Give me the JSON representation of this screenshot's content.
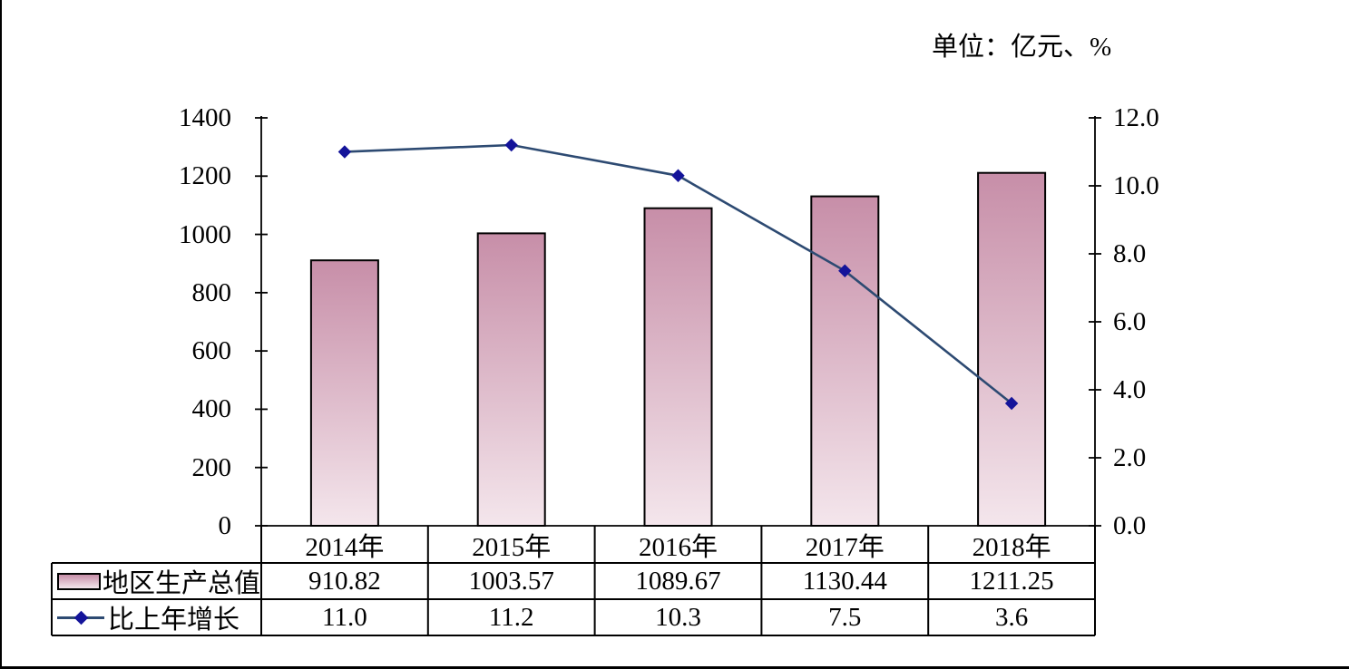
{
  "unit_label": "单位：亿元、%",
  "legend": [
    {
      "label": "地区生产总值",
      "icon": "bar-swatch-icon"
    },
    {
      "label": "比上年增长",
      "icon": "line-marker-icon"
    }
  ],
  "chart_data": {
    "type": "bar+line",
    "title": "",
    "unit_note": "单位：亿元、%",
    "categories": [
      "2014年",
      "2015年",
      "2016年",
      "2017年",
      "2018年"
    ],
    "series": [
      {
        "name": "地区生产总值",
        "type": "bar",
        "axis": "left",
        "values": [
          910.82,
          1003.57,
          1089.67,
          1130.44,
          1211.25
        ]
      },
      {
        "name": "比上年增长",
        "type": "line",
        "axis": "right",
        "values": [
          11.0,
          11.2,
          10.3,
          7.5,
          3.6
        ]
      }
    ],
    "value_labels": [
      [
        "910.82",
        "1003.57",
        "1089.67",
        "1130.44",
        "1211.25"
      ],
      [
        "11.0",
        "11.2",
        "10.3",
        "7.5",
        "3.6"
      ]
    ],
    "left_axis": {
      "min": 0,
      "max": 1400,
      "step": 200,
      "ticks": [
        "0",
        "200",
        "400",
        "600",
        "800",
        "1000",
        "1200",
        "1400"
      ]
    },
    "right_axis": {
      "min": 0,
      "max": 12,
      "step": 2,
      "ticks": [
        "0.0",
        "2.0",
        "4.0",
        "6.0",
        "8.0",
        "10.0",
        "12.0"
      ]
    },
    "grid": false,
    "legend_position": "bottom-table",
    "colors": {
      "bar_gradient_top": "#c78ea8",
      "bar_gradient_bottom": "#f4e6ec",
      "bar_border": "#000000",
      "line": "#2d4a72",
      "marker": "#14149a",
      "axis": "#000000",
      "table_border": "#000000",
      "text": "#000000",
      "background": "#ffffff"
    }
  }
}
